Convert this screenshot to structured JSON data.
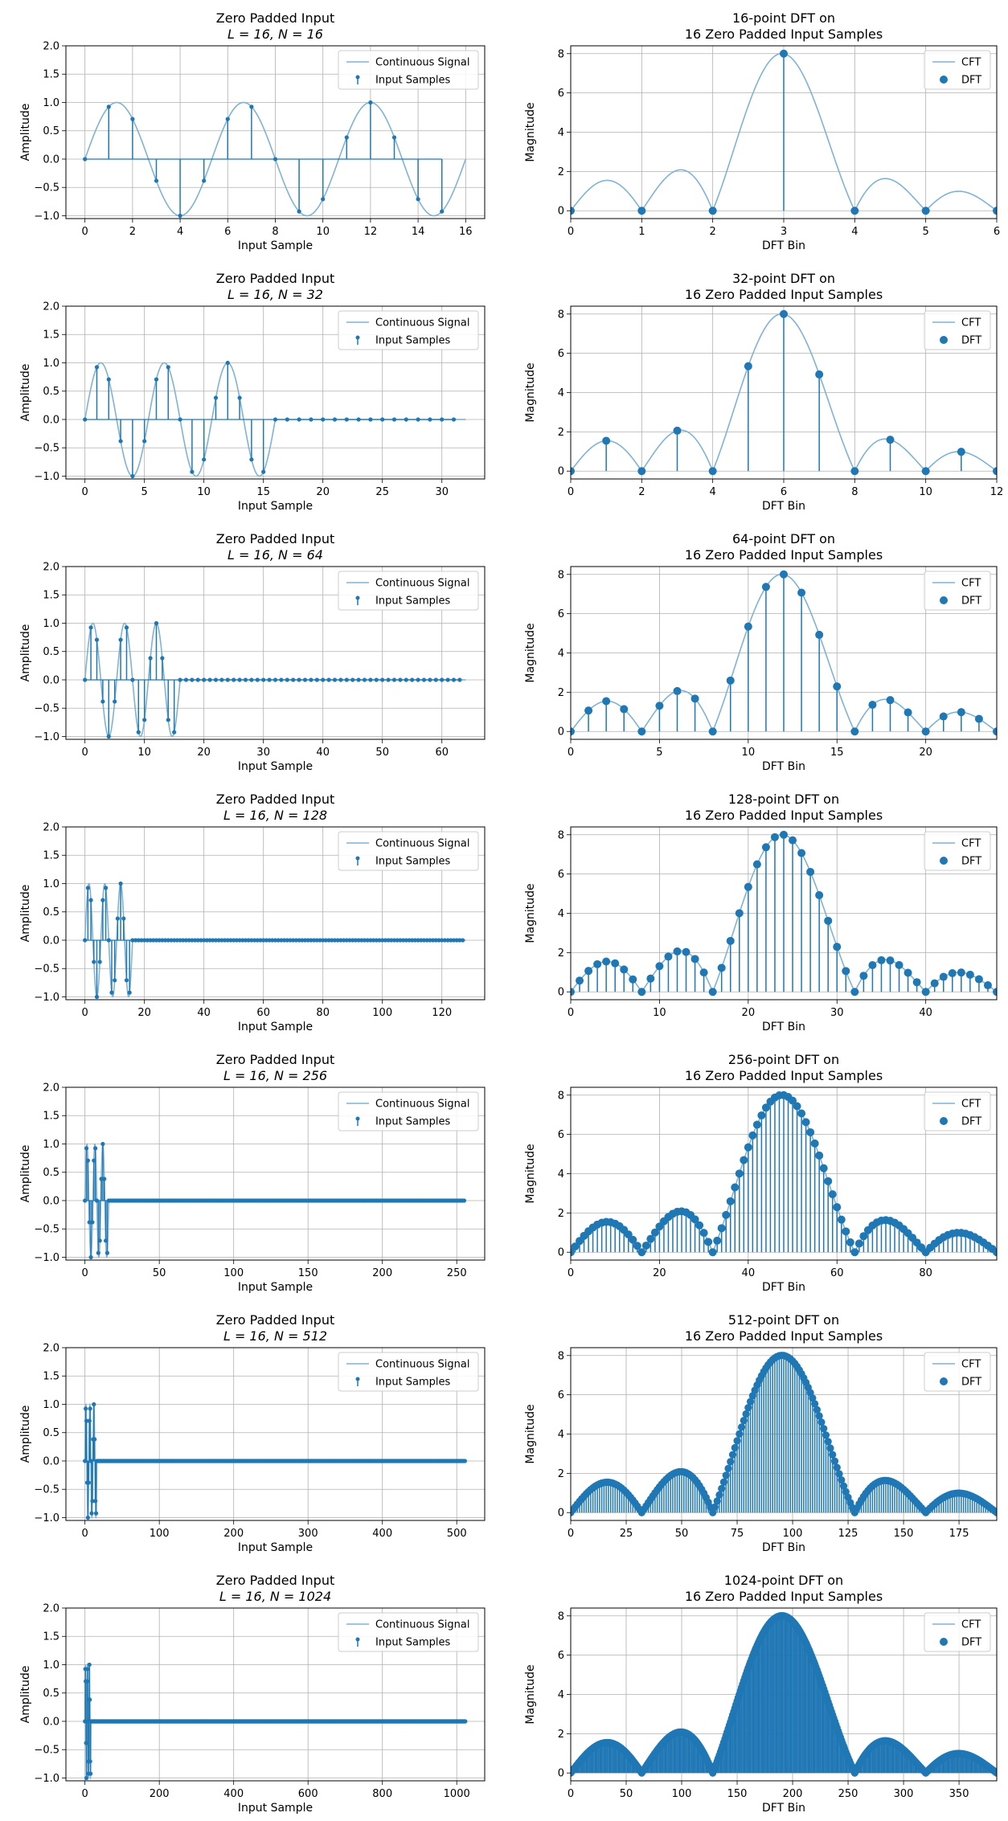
{
  "chart_data": {
    "type": "stem-grid",
    "signal": {
      "cycles": 3,
      "input_length": 16,
      "dft_sizes": [
        16,
        32,
        64,
        128,
        256,
        512,
        1024
      ]
    },
    "colors": {
      "stem": "#1f77b4",
      "curve": "#7fb3d5",
      "grid": "#b0b0b0",
      "frame": "#000000"
    },
    "left": {
      "title_line1": "Zero Padded Input",
      "title_line2_template": "L = 16,   N = {N}",
      "xlabel": "Input Sample",
      "ylabel": "Amplitude",
      "ylim": [
        -1.05,
        2.0
      ],
      "yticks": [
        -1.0,
        -0.5,
        0.0,
        0.5,
        1.0,
        1.5,
        2.0
      ],
      "ytick_labels": [
        "−1.0",
        "−0.5",
        "0.0",
        "0.5",
        "1.0",
        "1.5",
        "2.0"
      ],
      "legend": [
        "Continuous Signal",
        "Input Samples"
      ],
      "legend_position": "top-right",
      "panels": [
        {
          "N": 16,
          "xlim": [
            -0.8,
            16.8
          ],
          "xticks": [
            0,
            2,
            4,
            6,
            8,
            10,
            12,
            14,
            16
          ]
        },
        {
          "N": 32,
          "xlim": [
            -1.6,
            33.6
          ],
          "xticks": [
            0,
            5,
            10,
            15,
            20,
            25,
            30
          ]
        },
        {
          "N": 64,
          "xlim": [
            -3.2,
            67.2
          ],
          "xticks": [
            0,
            10,
            20,
            30,
            40,
            50,
            60
          ]
        },
        {
          "N": 128,
          "xlim": [
            -6.4,
            134.4
          ],
          "xticks": [
            0,
            20,
            40,
            60,
            80,
            100,
            120
          ]
        },
        {
          "N": 256,
          "xlim": [
            -12.8,
            268.8
          ],
          "xticks": [
            0,
            50,
            100,
            150,
            200,
            250
          ]
        },
        {
          "N": 512,
          "xlim": [
            -25.6,
            537.6
          ],
          "xticks": [
            0,
            100,
            200,
            300,
            400,
            500
          ]
        },
        {
          "N": 1024,
          "xlim": [
            -51.2,
            1075.2
          ],
          "xticks": [
            0,
            200,
            400,
            600,
            800,
            1000
          ]
        }
      ]
    },
    "right": {
      "title_line1_template": "{N}-point DFT on",
      "title_line2": "16 Zero Padded Input Samples",
      "xlabel": "DFT Bin",
      "ylabel": "Magnitude",
      "ylim": [
        -0.4,
        8.4
      ],
      "yticks": [
        0,
        2,
        4,
        6,
        8
      ],
      "ytick_labels": [
        "0",
        "2",
        "4",
        "6",
        "8"
      ],
      "legend": [
        "CFT",
        "DFT"
      ],
      "legend_position": "top-right",
      "panels": [
        {
          "N": 16,
          "xlim": [
            0,
            6
          ],
          "xticks": [
            0,
            1,
            2,
            3,
            4,
            5,
            6
          ]
        },
        {
          "N": 32,
          "xlim": [
            0,
            12
          ],
          "xticks": [
            0,
            2,
            4,
            6,
            8,
            10,
            12
          ]
        },
        {
          "N": 64,
          "xlim": [
            0,
            24
          ],
          "xticks": [
            0,
            5,
            10,
            15,
            20
          ]
        },
        {
          "N": 128,
          "xlim": [
            0,
            48
          ],
          "xticks": [
            0,
            10,
            20,
            30,
            40
          ]
        },
        {
          "N": 256,
          "xlim": [
            0,
            96
          ],
          "xticks": [
            0,
            20,
            40,
            60,
            80
          ]
        },
        {
          "N": 512,
          "xlim": [
            0,
            192
          ],
          "xticks": [
            0,
            25,
            50,
            75,
            100,
            125,
            150,
            175
          ]
        },
        {
          "N": 1024,
          "xlim": [
            0,
            384
          ],
          "xticks": [
            0,
            50,
            100,
            150,
            200,
            250,
            300,
            350
          ]
        }
      ]
    }
  }
}
